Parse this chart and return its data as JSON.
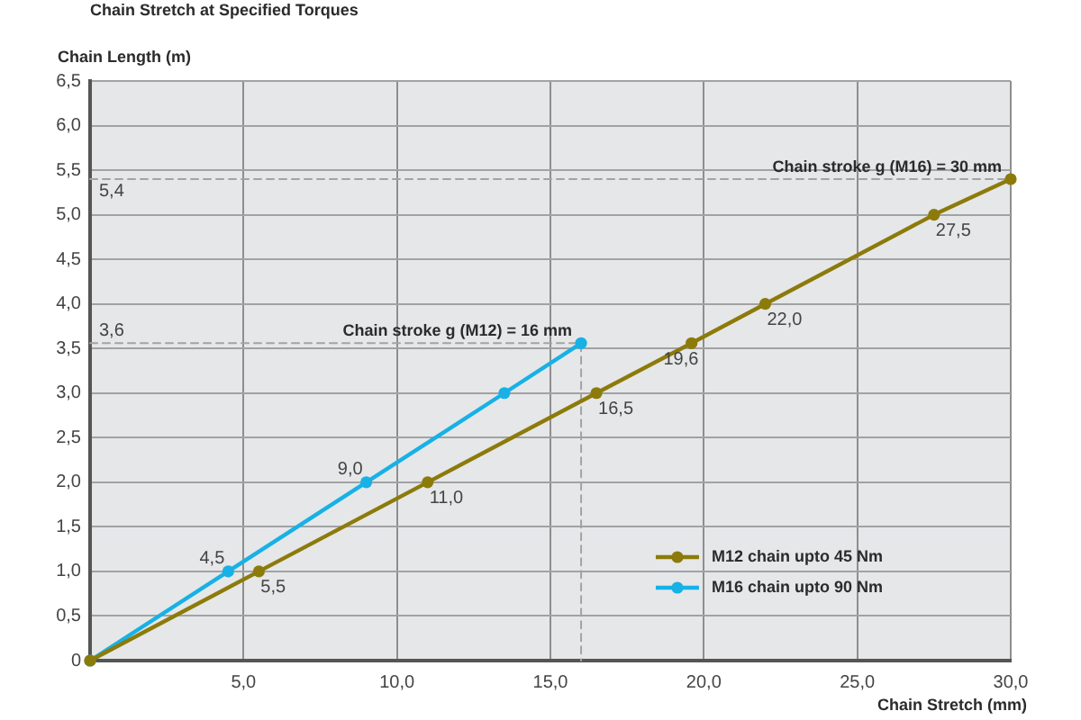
{
  "chart_data": {
    "type": "line",
    "title": "Chain Stretch at Specified Torques",
    "xlabel": "Chain Stretch (mm)",
    "ylabel": "Chain Length (m)",
    "xlim": [
      0,
      30
    ],
    "ylim": [
      0,
      6.5
    ],
    "xticks": [
      {
        "value": 0,
        "label": null
      },
      {
        "value": 5,
        "label": "5,0"
      },
      {
        "value": 10,
        "label": "10,0"
      },
      {
        "value": 15,
        "label": "15,0"
      },
      {
        "value": 20,
        "label": "20,0"
      },
      {
        "value": 25,
        "label": "25,0"
      },
      {
        "value": 30,
        "label": "30,0"
      }
    ],
    "yticks": [
      0,
      {
        "value": 0.5,
        "label": "0,5"
      },
      {
        "value": 1,
        "label": "1,0"
      },
      {
        "value": 1.5,
        "label": "1,5"
      },
      {
        "value": 2,
        "label": "2,0"
      },
      {
        "value": 2.5,
        "label": "2,5"
      },
      {
        "value": 3,
        "label": "3,0"
      },
      {
        "value": 3.5,
        "label": "3,5"
      },
      {
        "value": 4,
        "label": "4,0"
      },
      {
        "value": 4.5,
        "label": "4,5"
      },
      {
        "value": 5,
        "label": "5,0"
      },
      {
        "value": 5.5,
        "label": "5,5"
      },
      {
        "value": 6,
        "label": "6,0"
      },
      {
        "value": 6.5,
        "label": "6,5"
      }
    ],
    "grid": true,
    "legend": "bottom right",
    "series": [
      {
        "name": "M12 chain upto 45 Nm",
        "color": "#8c7b0a",
        "marker": "circle",
        "line_style": "solid",
        "x": [
          0,
          5.5,
          11,
          16.5,
          19.6,
          22,
          27.5,
          30
        ],
        "values": [
          0,
          1,
          2,
          3,
          3.56,
          4,
          5,
          5.4
        ]
      },
      {
        "name": "M16 chain upto 90 Nm",
        "color": "#17b1e6",
        "marker": "circle",
        "line_style": "solid",
        "x": [
          0,
          4.5,
          9,
          13.5,
          16
        ],
        "values": [
          0,
          1,
          2,
          3,
          3.56
        ]
      },
      {
        "color": "#a3a3a3",
        "marker": "none",
        "line_style": "dashed",
        "x": [
          0,
          16,
          16
        ],
        "values": [
          3.56,
          3.56,
          0
        ],
        "value_labels": [
          "3,6",
          null,
          null
        ]
      },
      {
        "color": "#a3a3a3",
        "marker": "none",
        "line_style": "dashed",
        "x": [
          0,
          30
        ],
        "values": [
          5.4,
          5.4
        ],
        "value_labels": [
          "5,4",
          null
        ]
      }
    ],
    "annotations": [
      {
        "text": "Chain stroke g (M16) = 30 mm",
        "x": 30,
        "y": 5.4
      },
      {
        "text": "Chain stroke g (M12) = 16 mm",
        "x": 16,
        "y": 3.56
      },
      {
        "text": "5,5",
        "x": 5.5,
        "y": 1
      },
      {
        "text": "11,0",
        "x": 11,
        "y": 2
      },
      {
        "text": "16,5",
        "x": 16.5,
        "y": 3
      },
      {
        "text": "19,6",
        "x": 19.6,
        "y": 3.56
      },
      {
        "text": "22,0",
        "x": 22,
        "y": 4
      },
      {
        "text": "27,5",
        "x": 27.5,
        "y": 5
      },
      {
        "text": "4,5",
        "x": 4.5,
        "y": 1
      },
      {
        "text": "9,0",
        "x": 9,
        "y": 2
      }
    ]
  }
}
